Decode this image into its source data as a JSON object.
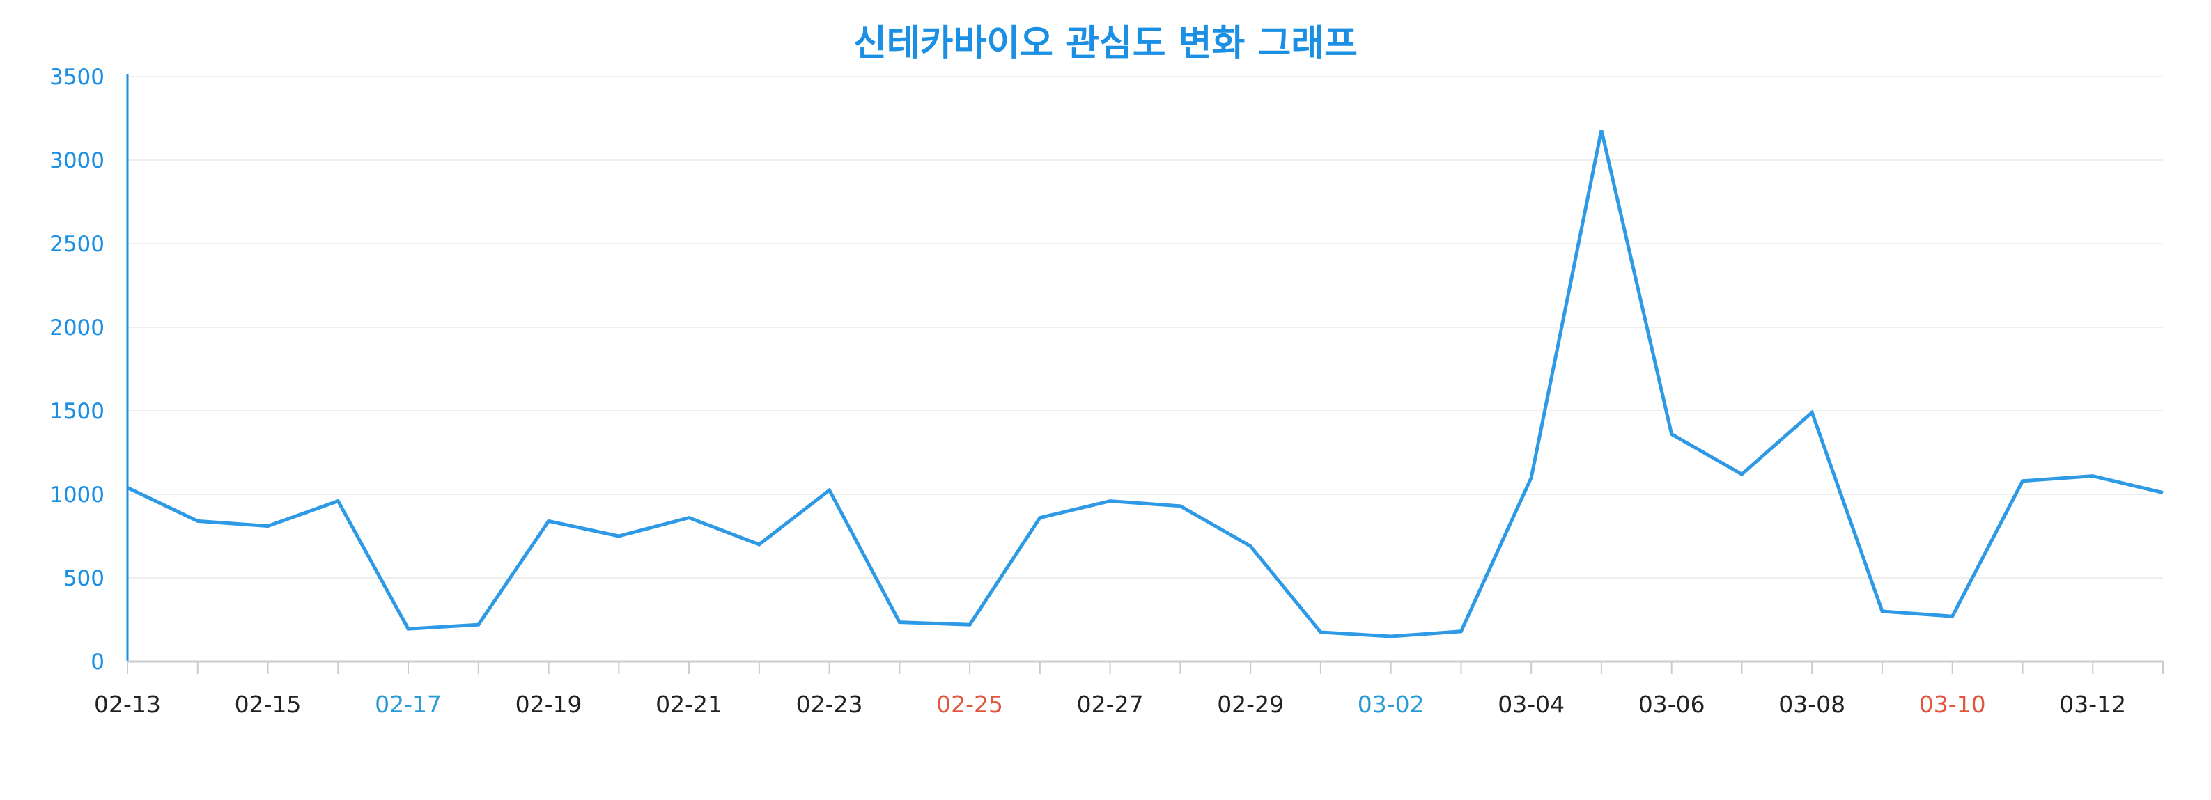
{
  "chart_data": {
    "type": "line",
    "title": "신테카바이오 관심도 변화 그래프",
    "xlabel": "",
    "ylabel": "",
    "ylim": [
      0,
      3500
    ],
    "y_ticks": [
      0,
      500,
      1000,
      1500,
      2000,
      2500,
      3000,
      3500
    ],
    "grid": true,
    "categories": [
      "02-13",
      "02-14",
      "02-15",
      "02-16",
      "02-17",
      "02-18",
      "02-19",
      "02-20",
      "02-21",
      "02-22",
      "02-23",
      "02-24",
      "02-25",
      "02-26",
      "02-27",
      "02-28",
      "02-29",
      "03-01",
      "03-02",
      "03-03",
      "03-04",
      "03-05",
      "03-06",
      "03-07",
      "03-08",
      "03-09",
      "03-10",
      "03-11",
      "03-12",
      "03-13"
    ],
    "x_tick_labels": [
      {
        "label": "02-13",
        "color": "#222222"
      },
      {
        "label": "02-15",
        "color": "#222222"
      },
      {
        "label": "02-17",
        "color": "#2b9bd8"
      },
      {
        "label": "02-19",
        "color": "#222222"
      },
      {
        "label": "02-21",
        "color": "#222222"
      },
      {
        "label": "02-23",
        "color": "#222222"
      },
      {
        "label": "02-25",
        "color": "#e0573e"
      },
      {
        "label": "02-27",
        "color": "#222222"
      },
      {
        "label": "02-29",
        "color": "#222222"
      },
      {
        "label": "03-02",
        "color": "#2b9bd8"
      },
      {
        "label": "03-04",
        "color": "#222222"
      },
      {
        "label": "03-06",
        "color": "#222222"
      },
      {
        "label": "03-08",
        "color": "#222222"
      },
      {
        "label": "03-10",
        "color": "#e0573e"
      },
      {
        "label": "03-12",
        "color": "#222222"
      }
    ],
    "series": [
      {
        "values": [
          1040,
          840,
          810,
          960,
          195,
          220,
          840,
          750,
          860,
          700,
          1025,
          235,
          220,
          860,
          960,
          930,
          690,
          175,
          150,
          180,
          1100,
          3180,
          1360,
          1120,
          1490,
          300,
          270,
          1080,
          1110,
          1010
        ]
      }
    ]
  },
  "colors": {
    "title": "#1a8fe3",
    "line": "#2e9ae6",
    "y_axis": "#1a8fe3",
    "y_tick_label": "#1a8fe3",
    "x_axis": "#cccccc",
    "grid": "#eeeeee"
  }
}
